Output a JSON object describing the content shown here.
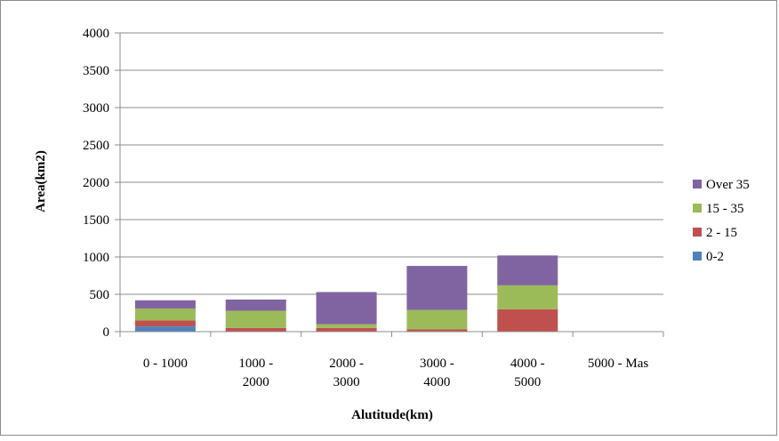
{
  "chart_data": {
    "type": "bar",
    "stacked": true,
    "categories": [
      [
        "0 - 1000"
      ],
      [
        "1000 -",
        "2000"
      ],
      [
        "2000 -",
        "3000"
      ],
      [
        "3000 -",
        "4000"
      ],
      [
        "4000 -",
        "5000"
      ],
      [
        "5000 - Mas"
      ]
    ],
    "series": [
      {
        "name": "0-2",
        "color": "#4f81bd",
        "values": [
          70,
          0,
          0,
          0,
          0,
          0
        ]
      },
      {
        "name": "2 - 15",
        "color": "#c0504d",
        "values": [
          80,
          50,
          50,
          30,
          300,
          0
        ]
      },
      {
        "name": "15 - 35",
        "color": "#9bbb59",
        "values": [
          160,
          230,
          50,
          260,
          320,
          0
        ]
      },
      {
        "name": "Over 35",
        "color": "#8064a2",
        "values": [
          110,
          150,
          430,
          590,
          400,
          0
        ]
      }
    ],
    "xlabel": "Alutitude(km)",
    "ylabel": "Area(km2)",
    "ylim": [
      0,
      4000
    ],
    "yticks": [
      0,
      500,
      1000,
      1500,
      2000,
      2500,
      3000,
      3500,
      4000
    ],
    "grid": true,
    "legend_position": "right"
  }
}
